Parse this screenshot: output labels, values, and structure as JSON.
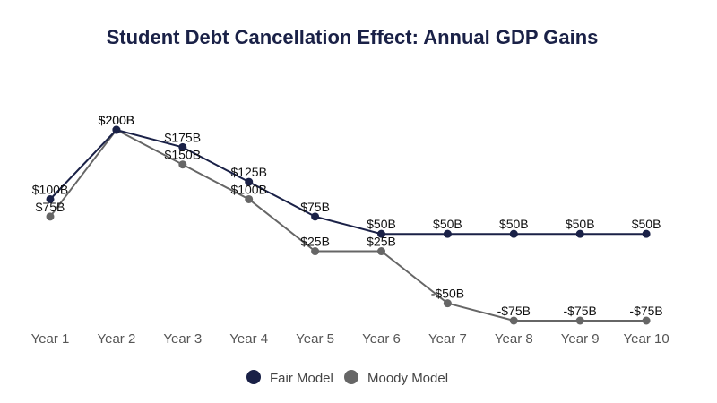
{
  "chart_data": {
    "type": "line",
    "title": "Student Debt Cancellation Effect: Annual GDP Gains",
    "xlabel": "",
    "ylabel": "",
    "categories": [
      "Year 1",
      "Year 2",
      "Year 3",
      "Year 4",
      "Year 5",
      "Year 6",
      "Year 7",
      "Year 8",
      "Year 9",
      "Year 10"
    ],
    "series": [
      {
        "name": "Fair Model",
        "color": "#1a2147",
        "values": [
          100,
          200,
          175,
          125,
          75,
          50,
          50,
          50,
          50,
          50
        ],
        "labels": [
          "$100B",
          "$200B",
          "$175B",
          "$125B",
          "$75B",
          "$50B",
          "$50B",
          "$50B",
          "$50B",
          "$50B"
        ]
      },
      {
        "name": "Moody Model",
        "color": "#666666",
        "values": [
          75,
          200,
          150,
          100,
          25,
          25,
          -50,
          -75,
          -75,
          -75
        ],
        "labels": [
          "$75B",
          "$200B",
          "$150B",
          "$100B",
          "$25B",
          "$25B",
          "-$50B",
          "-$75B",
          "-$75B",
          "-$75B"
        ]
      }
    ],
    "ylim": [
      -75,
      200
    ],
    "grid": false,
    "legend_position": "bottom-center",
    "title_color": "#1a2147",
    "tick_color": "#555555"
  }
}
